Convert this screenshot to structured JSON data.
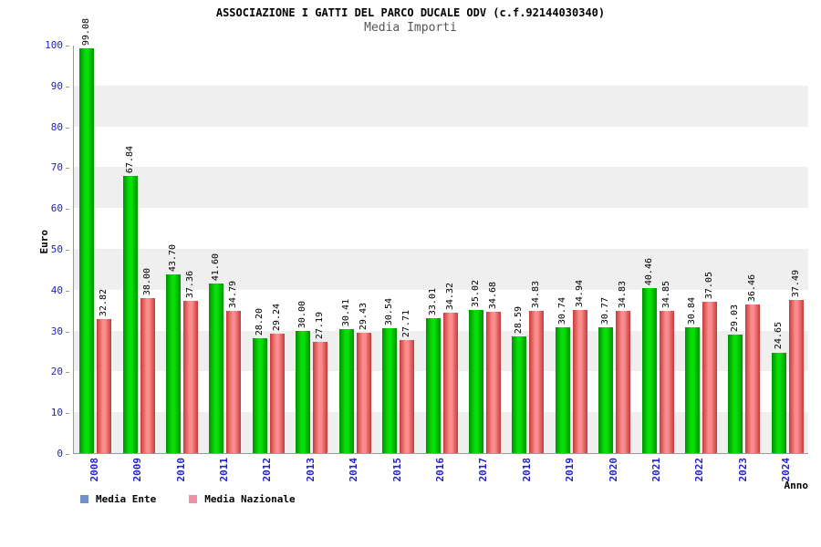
{
  "header": {
    "title": "ASSOCIAZIONE I GATTI DEL PARCO DUCALE ODV (c.f.92144030340)",
    "subtitle": "Media Importi"
  },
  "chart_data": {
    "type": "bar",
    "title": "Media Importi",
    "categories": [
      "2008",
      "2009",
      "2010",
      "2011",
      "2012",
      "2013",
      "2014",
      "2015",
      "2016",
      "2017",
      "2018",
      "2019",
      "2020",
      "2021",
      "2022",
      "2023",
      "2024"
    ],
    "series": [
      {
        "name": "Media Ente",
        "color": "#00d400",
        "values": [
          99.08,
          67.84,
          43.7,
          41.6,
          28.2,
          30.0,
          30.41,
          30.54,
          33.01,
          35.02,
          28.59,
          30.74,
          30.77,
          40.46,
          30.84,
          29.03,
          24.65
        ],
        "labels": [
          "99.08",
          "67.84",
          "43.70",
          "41.60",
          "28.20",
          "30.00",
          "30.41",
          "30.54",
          "33.01",
          "35.02",
          "28.59",
          "30.74",
          "30.77",
          "40.46",
          "30.84",
          "29.03",
          "24.65"
        ]
      },
      {
        "name": "Media Nazionale",
        "color": "#ff6a6a",
        "values": [
          32.82,
          38.0,
          37.36,
          34.79,
          29.24,
          27.19,
          29.43,
          27.71,
          34.32,
          34.68,
          34.83,
          34.94,
          34.83,
          34.85,
          37.05,
          36.46,
          37.49
        ],
        "labels": [
          "32.82",
          "38.00",
          "37.36",
          "34.79",
          "29.24",
          "27.19",
          "29.43",
          "27.71",
          "34.32",
          "34.68",
          "34.83",
          "34.94",
          "34.83",
          "34.85",
          "37.05",
          "36.46",
          "37.49"
        ]
      }
    ],
    "xlabel": "Anno",
    "ylabel": "Euro",
    "ylim": [
      0,
      100
    ],
    "y_ticks": [
      0,
      10,
      20,
      30,
      40,
      50,
      60,
      70,
      80,
      90,
      100
    ],
    "grid": "alternating-horizontal-bands",
    "legend_position": "bottom-left"
  },
  "legend": {
    "swatches": [
      "#7090c8",
      "#ef8fa0"
    ]
  },
  "colors": {
    "tick_label_blue": "#2222cc",
    "band_gray": "#efefef"
  }
}
